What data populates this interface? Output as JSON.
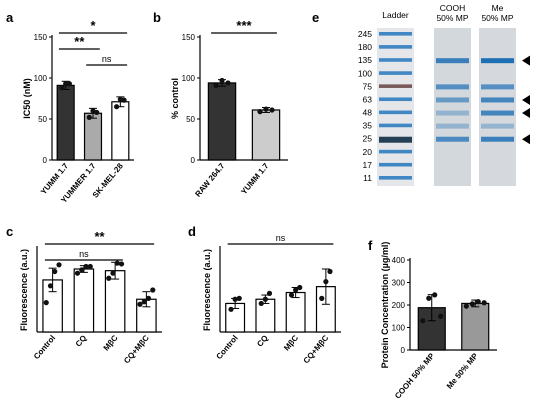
{
  "panels": {
    "a": {
      "letter": "a"
    },
    "b": {
      "letter": "b"
    },
    "c": {
      "letter": "c"
    },
    "d": {
      "letter": "d"
    },
    "e": {
      "letter": "e"
    },
    "f": {
      "letter": "f"
    }
  },
  "chart_data": [
    {
      "id": "a",
      "type": "bar",
      "ylabel": "IC50 (nM)",
      "ylim": [
        0,
        150
      ],
      "yticks": [
        0,
        50,
        100,
        150
      ],
      "categories": [
        "YUMM 1.7",
        "YUMMER 1.7",
        "SK-MEL-28"
      ],
      "values": [
        91,
        57,
        71
      ],
      "errors": [
        5,
        6,
        6
      ],
      "points": [
        [
          88,
          93,
          93
        ],
        [
          52,
          60,
          58
        ],
        [
          65,
          74,
          73
        ]
      ],
      "bar_colors": [
        "#333333",
        "#aaaaaa",
        "#ffffff"
      ],
      "significance": [
        {
          "label": "*",
          "from": 0,
          "to": 2
        },
        {
          "label": "**",
          "from": 0,
          "to": 1
        },
        {
          "label": "ns",
          "from": 1,
          "to": 2
        }
      ]
    },
    {
      "id": "b",
      "type": "bar",
      "ylabel": "% control",
      "ylim": [
        0,
        150
      ],
      "yticks": [
        0,
        50,
        100,
        150
      ],
      "categories": [
        "RAW 264.7",
        "YUMM 1.7"
      ],
      "values": [
        94,
        61
      ],
      "errors": [
        4,
        3
      ],
      "points": [
        [
          91,
          97,
          94
        ],
        [
          59,
          62,
          61
        ]
      ],
      "bar_colors": [
        "#333333",
        "#cccccc"
      ],
      "significance": [
        {
          "label": "***",
          "from": 0,
          "to": 1
        }
      ]
    },
    {
      "id": "c",
      "type": "bar",
      "ylabel": "Fluorescence (a.u.)",
      "categories": [
        "Control",
        "CQ",
        "MβC",
        "CQ+MβC"
      ],
      "values": [
        0.62,
        0.75,
        0.73,
        0.39
      ],
      "errors": [
        0.14,
        0.04,
        0.1,
        0.09
      ],
      "points": [
        [
          0.35,
          0.55,
          0.72,
          0.8
        ],
        [
          0.7,
          0.74,
          0.78,
          0.78
        ],
        [
          0.64,
          0.7,
          0.82,
          0.81
        ],
        [
          0.33,
          0.36,
          0.4,
          0.5
        ]
      ],
      "bar_colors": [
        "#ffffff",
        "#ffffff",
        "#ffffff",
        "#ffffff"
      ],
      "significance": [
        {
          "label": "**",
          "from": 0,
          "to": 3
        },
        {
          "label": "ns",
          "from": 0,
          "to": 2
        }
      ]
    },
    {
      "id": "d",
      "type": "bar",
      "ylabel": "Fluorescence (a.u.)",
      "categories": [
        "Control",
        "CQ",
        "MβC",
        "CQ+MβC"
      ],
      "values": [
        0.34,
        0.39,
        0.47,
        0.54
      ],
      "errors": [
        0.06,
        0.05,
        0.06,
        0.21
      ],
      "points": [
        [
          0.27,
          0.39,
          0.4
        ],
        [
          0.34,
          0.39,
          0.46
        ],
        [
          0.44,
          0.5,
          0.53
        ],
        [
          0.4,
          0.6,
          0.72
        ]
      ],
      "bar_colors": [
        "#ffffff",
        "#ffffff",
        "#ffffff",
        "#ffffff"
      ],
      "significance": [
        {
          "label": "ns",
          "from": 0,
          "to": 3
        }
      ]
    },
    {
      "id": "e",
      "type": "gel",
      "lanes": [
        "Ladder",
        "COOH\n50% MP",
        "Me\n50% MP"
      ],
      "ladder_mw": [
        "245",
        "180",
        "135",
        "100",
        "75",
        "63",
        "48",
        "35",
        "25",
        "20",
        "17",
        "11"
      ],
      "arrows_at_mw": [
        "135",
        "63",
        "48",
        "25"
      ]
    },
    {
      "id": "f",
      "type": "bar",
      "ylabel": "Protein Concentration (µg/ml)",
      "ylim": [
        0,
        400
      ],
      "yticks": [
        0,
        100,
        200,
        300,
        400
      ],
      "categories": [
        "COOH 50% MP",
        "Me 50% MP"
      ],
      "values": [
        188,
        207
      ],
      "errors": [
        58,
        15
      ],
      "points": [
        [
          130,
          230,
          245,
          150
        ],
        [
          195,
          205,
          215,
          210
        ]
      ],
      "bar_colors": [
        "#333333",
        "#999999"
      ]
    }
  ]
}
